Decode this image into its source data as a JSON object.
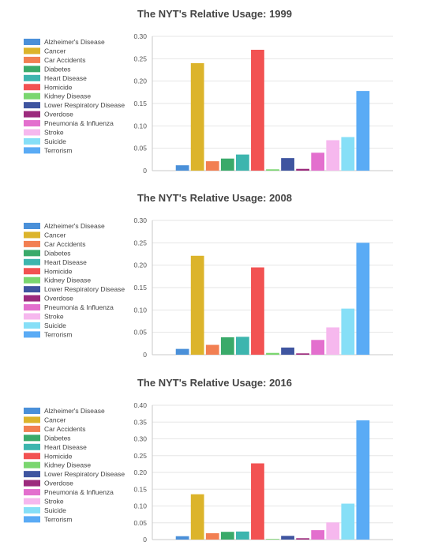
{
  "chart_data": [
    {
      "type": "bar",
      "title": "The NYT's Relative Usage: 1999",
      "categories": [
        "Alzheimer's Disease",
        "Cancer",
        "Car Accidents",
        "Diabetes",
        "Heart Disease",
        "Homicide",
        "Kidney Disease",
        "Lower Respiratory Disease",
        "Overdose",
        "Pneumonia & Influenza",
        "Stroke",
        "Suicide",
        "Terrorism"
      ],
      "values": [
        0.012,
        0.24,
        0.021,
        0.027,
        0.036,
        0.27,
        0.003,
        0.028,
        0.004,
        0.04,
        0.068,
        0.075,
        0.178
      ],
      "ylim": [
        0,
        0.3
      ],
      "yticks": [
        "0",
        "0.05",
        "0.10",
        "0.15",
        "0.20",
        "0.25",
        "0.30"
      ],
      "xlabel": "",
      "ylabel": "",
      "grid": true,
      "legend_position": "left"
    },
    {
      "type": "bar",
      "title": "The NYT's Relative Usage: 2008",
      "categories": [
        "Alzheimer's Disease",
        "Cancer",
        "Car Accidents",
        "Diabetes",
        "Heart Disease",
        "Homicide",
        "Kidney Disease",
        "Lower Respiratory Disease",
        "Overdose",
        "Pneumonia & Influenza",
        "Stroke",
        "Suicide",
        "Terrorism"
      ],
      "values": [
        0.013,
        0.221,
        0.022,
        0.039,
        0.04,
        0.195,
        0.004,
        0.016,
        0.003,
        0.033,
        0.061,
        0.103,
        0.25
      ],
      "ylim": [
        0,
        0.3
      ],
      "yticks": [
        "0",
        "0.05",
        "0.10",
        "0.15",
        "0.20",
        "0.25",
        "0.30"
      ],
      "xlabel": "",
      "ylabel": "",
      "grid": true,
      "legend_position": "left"
    },
    {
      "type": "bar",
      "title": "The NYT's Relative Usage: 2016",
      "categories": [
        "Alzheimer's Disease",
        "Cancer",
        "Car Accidents",
        "Diabetes",
        "Heart Disease",
        "Homicide",
        "Kidney Disease",
        "Lower Respiratory Disease",
        "Overdose",
        "Pneumonia & Influenza",
        "Stroke",
        "Suicide",
        "Terrorism"
      ],
      "values": [
        0.01,
        0.135,
        0.019,
        0.023,
        0.024,
        0.227,
        0.002,
        0.011,
        0.004,
        0.028,
        0.051,
        0.107,
        0.355
      ],
      "ylim": [
        0,
        0.4
      ],
      "yticks": [
        "0",
        "0.05",
        "0.10",
        "0.15",
        "0.20",
        "0.25",
        "0.30",
        "0.35",
        "0.40"
      ],
      "xlabel": "",
      "ylabel": "",
      "grid": true,
      "legend_position": "left"
    }
  ],
  "colors": [
    "#4a90d9",
    "#dcb42b",
    "#f27f52",
    "#3aaa6a",
    "#3db5ae",
    "#f25252",
    "#7ad66f",
    "#3f55a0",
    "#9c2a7d",
    "#e36fce",
    "#f6b8ee",
    "#86dff7",
    "#5aabf5"
  ]
}
